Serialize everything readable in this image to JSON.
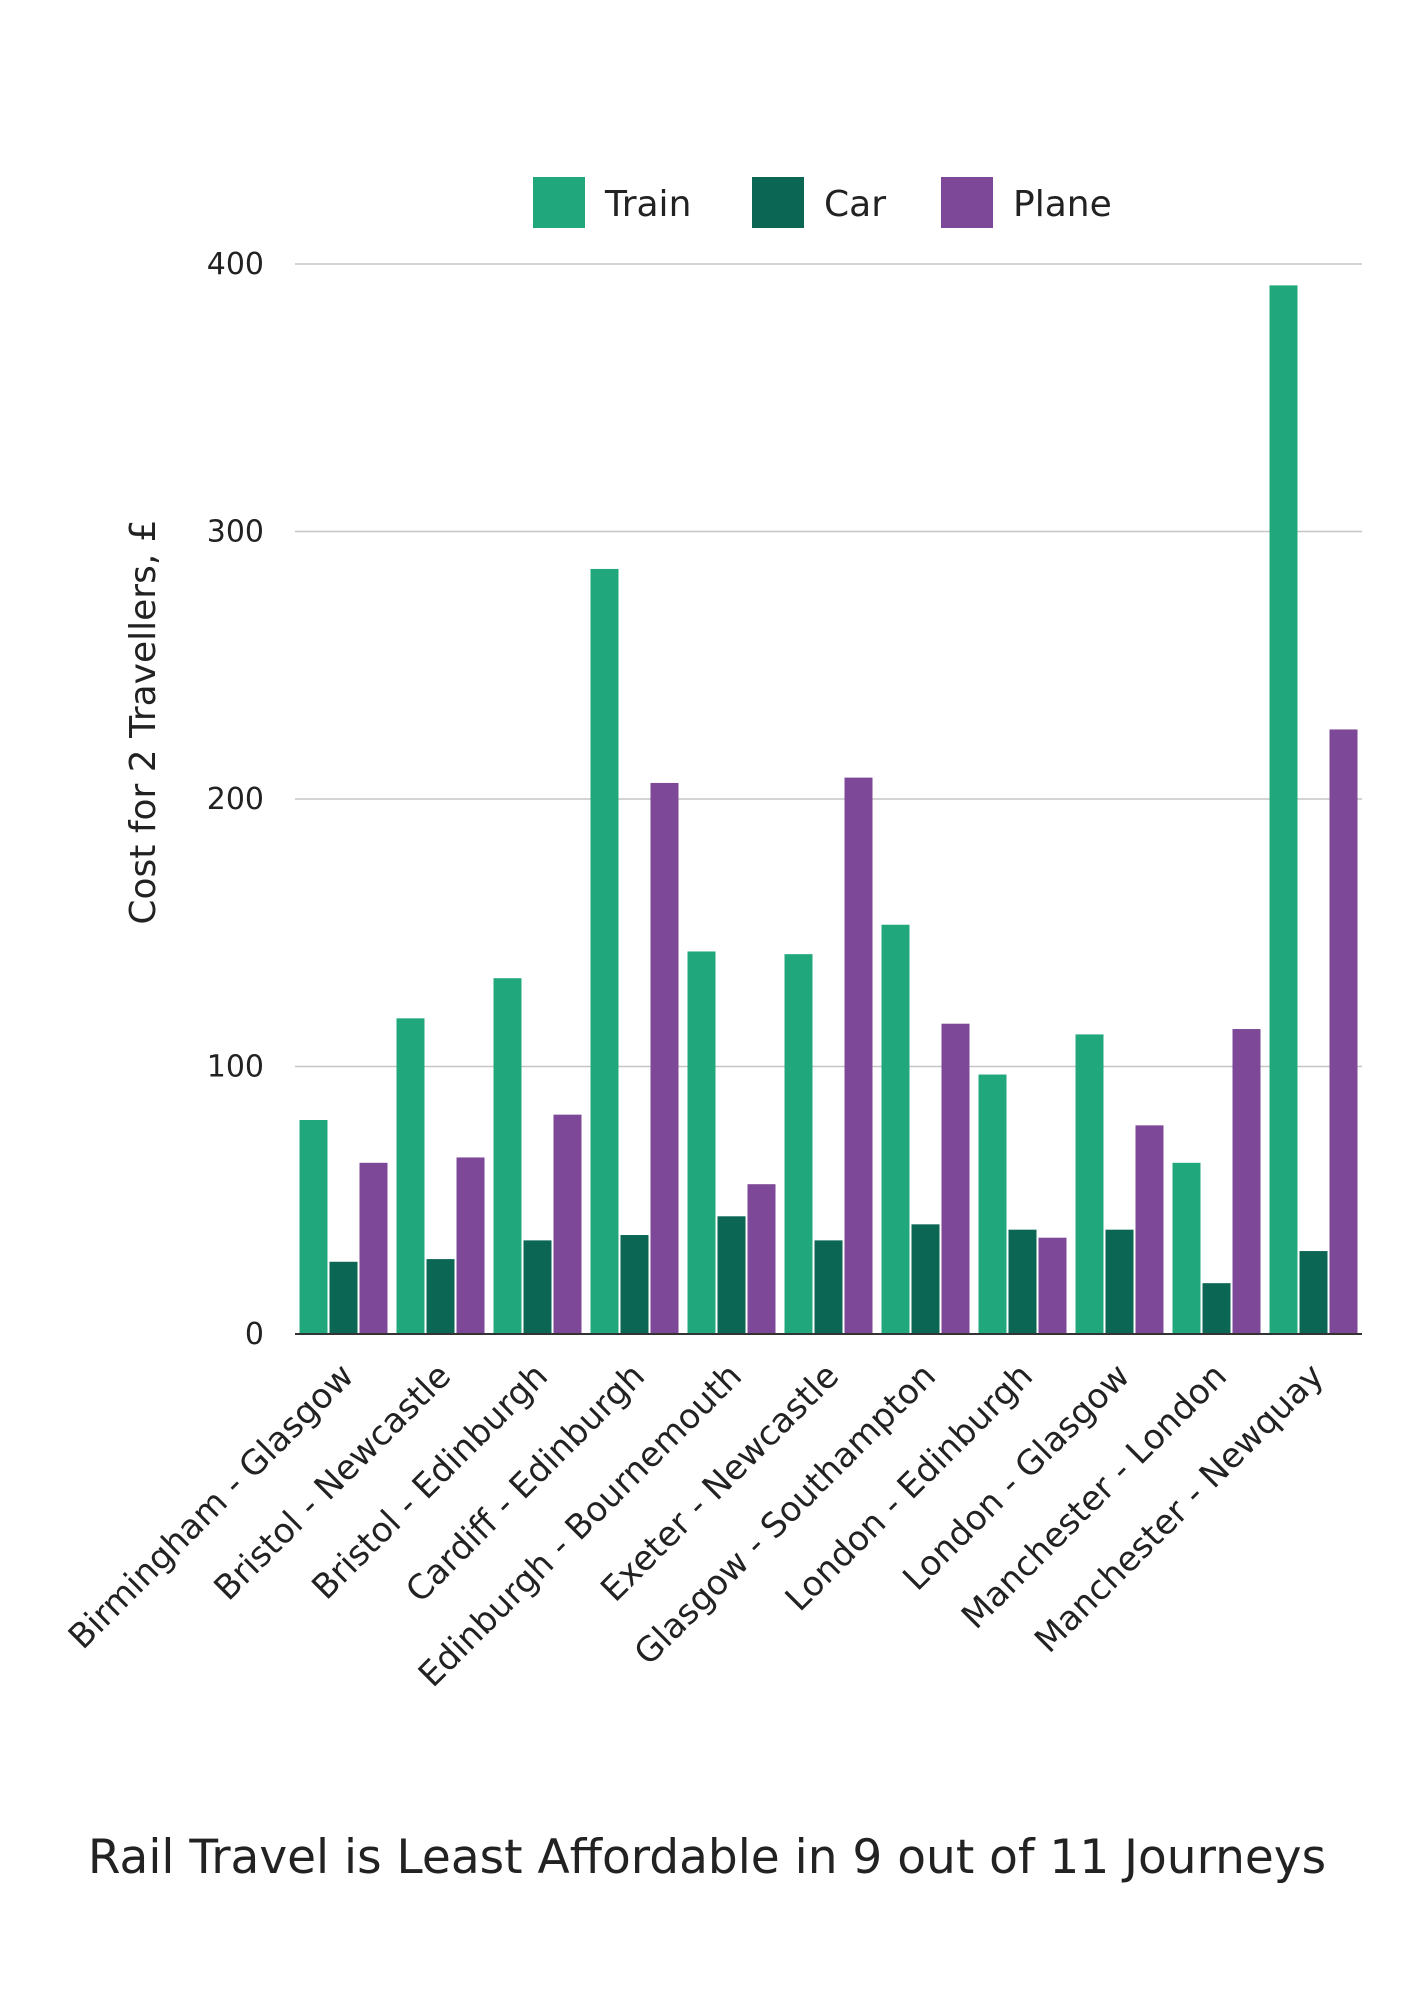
{
  "chart_data": {
    "type": "bar",
    "ylabel": "Cost for 2 Travellers, £",
    "xlabel": "",
    "ylim": [
      0,
      400
    ],
    "yticks": [
      0,
      100,
      200,
      300,
      400
    ],
    "grid": true,
    "legend_position": "top",
    "categories": [
      "Birmingham - Glasgow",
      "Bristol - Newcastle",
      "Bristol - Edinburgh",
      "Cardiff - Edinburgh",
      "Edinburgh - Bournemouth",
      "Exeter - Newcastle",
      "Glasgow - Southampton",
      "London - Edinburgh",
      "London - Glasgow",
      "Manchester - London",
      "Manchester - Newquay"
    ],
    "series": [
      {
        "name": "Train",
        "color": "#21a77c",
        "values": [
          80,
          118,
          133,
          286,
          143,
          142,
          153,
          97,
          112,
          64,
          392
        ]
      },
      {
        "name": "Car",
        "color": "#0b6654",
        "values": [
          27,
          28,
          35,
          37,
          44,
          35,
          41,
          39,
          39,
          19,
          31
        ]
      },
      {
        "name": "Plane",
        "color": "#7d4897",
        "values": [
          64,
          66,
          82,
          206,
          56,
          208,
          116,
          36,
          78,
          114,
          226
        ]
      }
    ]
  },
  "caption": "Rail Travel is Least Affordable in 9 out of 11 Journeys"
}
